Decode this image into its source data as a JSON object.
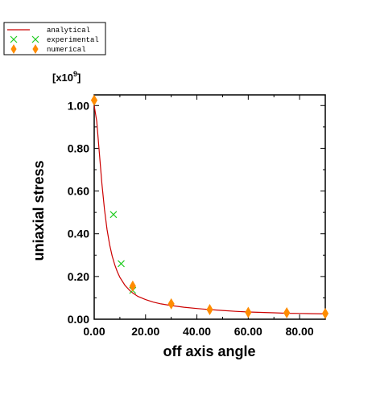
{
  "chart_data": {
    "type": "scatter",
    "xlabel": "off axis angle",
    "ylabel": "uniaxial stress",
    "y_scale_label": "[x10",
    "y_scale_exponent": "9",
    "y_scale_suffix": "]",
    "xlim": [
      0,
      90
    ],
    "ylim": [
      0,
      1.05
    ],
    "x_ticks": [
      0,
      20,
      40,
      60,
      80
    ],
    "x_tick_labels": [
      "0.00",
      "20.00",
      "40.00",
      "60.00",
      "80.00"
    ],
    "y_ticks": [
      0,
      0.2,
      0.4,
      0.6,
      0.8,
      1.0
    ],
    "y_tick_labels": [
      "0.00",
      "0.20",
      "0.40",
      "0.60",
      "0.80",
      "1.00"
    ],
    "legend_position": "top-left, outside plot",
    "grid": false,
    "series": [
      {
        "name": "analytical",
        "type": "line",
        "color": "#cc0000",
        "x": [
          0,
          1,
          2,
          3,
          4,
          5,
          6,
          7,
          8,
          9,
          10,
          12,
          14,
          15,
          17,
          20,
          23,
          26,
          30,
          35,
          40,
          45,
          50,
          55,
          60,
          65,
          70,
          75,
          80,
          85,
          90
        ],
        "y": [
          1.0,
          0.925,
          0.778,
          0.633,
          0.513,
          0.421,
          0.35,
          0.296,
          0.255,
          0.222,
          0.196,
          0.158,
          0.133,
          0.123,
          0.107,
          0.092,
          0.08,
          0.072,
          0.064,
          0.056,
          0.05,
          0.045,
          0.041,
          0.037,
          0.034,
          0.032,
          0.03,
          0.028,
          0.027,
          0.026,
          0.025
        ]
      },
      {
        "name": "experimental",
        "type": "scatter",
        "marker": "x",
        "color": "#22cc22",
        "x": [
          7.5,
          10.5,
          15
        ],
        "y": [
          0.49,
          0.26,
          0.135
        ]
      },
      {
        "name": "numerical",
        "type": "scatter",
        "marker": "diamond",
        "color": "#ff8c00",
        "x": [
          0,
          15,
          30,
          45,
          60,
          75,
          90
        ],
        "y": [
          1.025,
          0.155,
          0.072,
          0.045,
          0.032,
          0.03,
          0.027
        ]
      }
    ]
  }
}
